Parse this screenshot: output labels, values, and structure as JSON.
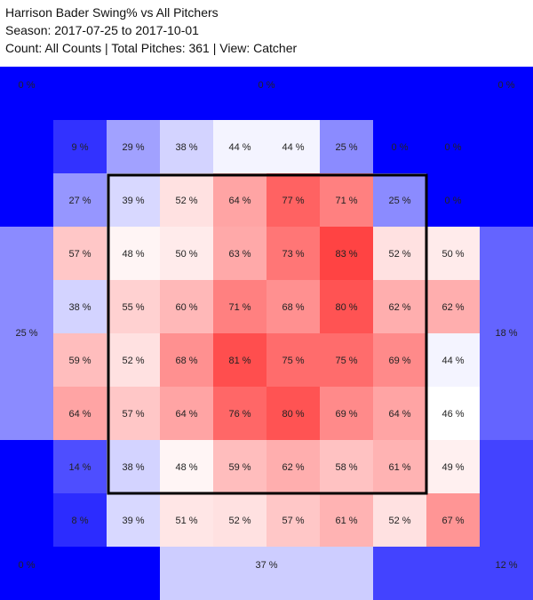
{
  "header": {
    "line1": "Harrison Bader Swing% vs All Pitchers",
    "line2": "Season: 2017-07-25 to 2017-10-01",
    "line3": "Count: All Counts | Total Pitches: 361 | View: Catcher"
  },
  "colors": {
    "cold": "#0000ff",
    "neutral": "#ffffff",
    "hot": "#ff2020",
    "strike_zone": "#000000"
  },
  "chart_data": {
    "type": "heatmap",
    "title": "Harrison Bader Swing% vs All Pitchers",
    "value_unit": "%",
    "midpoint": 46,
    "outer_zones": [
      {
        "name": "top-left",
        "value": 0,
        "label": "0 %"
      },
      {
        "name": "top",
        "value": 0,
        "label": "0 %"
      },
      {
        "name": "top-right",
        "value": 0,
        "label": "0 %"
      },
      {
        "name": "left",
        "value": 25,
        "label": "25 %"
      },
      {
        "name": "right",
        "value": 18,
        "label": "18 %"
      },
      {
        "name": "bottom-left",
        "value": 0,
        "label": "0 %"
      },
      {
        "name": "bottom",
        "value": 37,
        "label": "37 %"
      },
      {
        "name": "bottom-right",
        "value": 12,
        "label": "12 %"
      }
    ],
    "grid": [
      [
        9,
        29,
        38,
        44,
        44,
        25,
        0,
        0
      ],
      [
        27,
        39,
        52,
        64,
        77,
        71,
        25,
        0
      ],
      [
        57,
        48,
        50,
        63,
        73,
        83,
        52,
        50
      ],
      [
        38,
        55,
        60,
        71,
        68,
        80,
        62,
        62
      ],
      [
        59,
        52,
        68,
        81,
        75,
        75,
        69,
        44
      ],
      [
        64,
        57,
        64,
        76,
        80,
        69,
        64,
        46
      ],
      [
        14,
        38,
        48,
        59,
        62,
        58,
        61,
        49
      ],
      [
        8,
        39,
        51,
        52,
        57,
        61,
        52,
        67
      ]
    ],
    "strike_zone": {
      "rows": [
        1,
        6
      ],
      "cols": [
        1,
        6
      ]
    }
  }
}
